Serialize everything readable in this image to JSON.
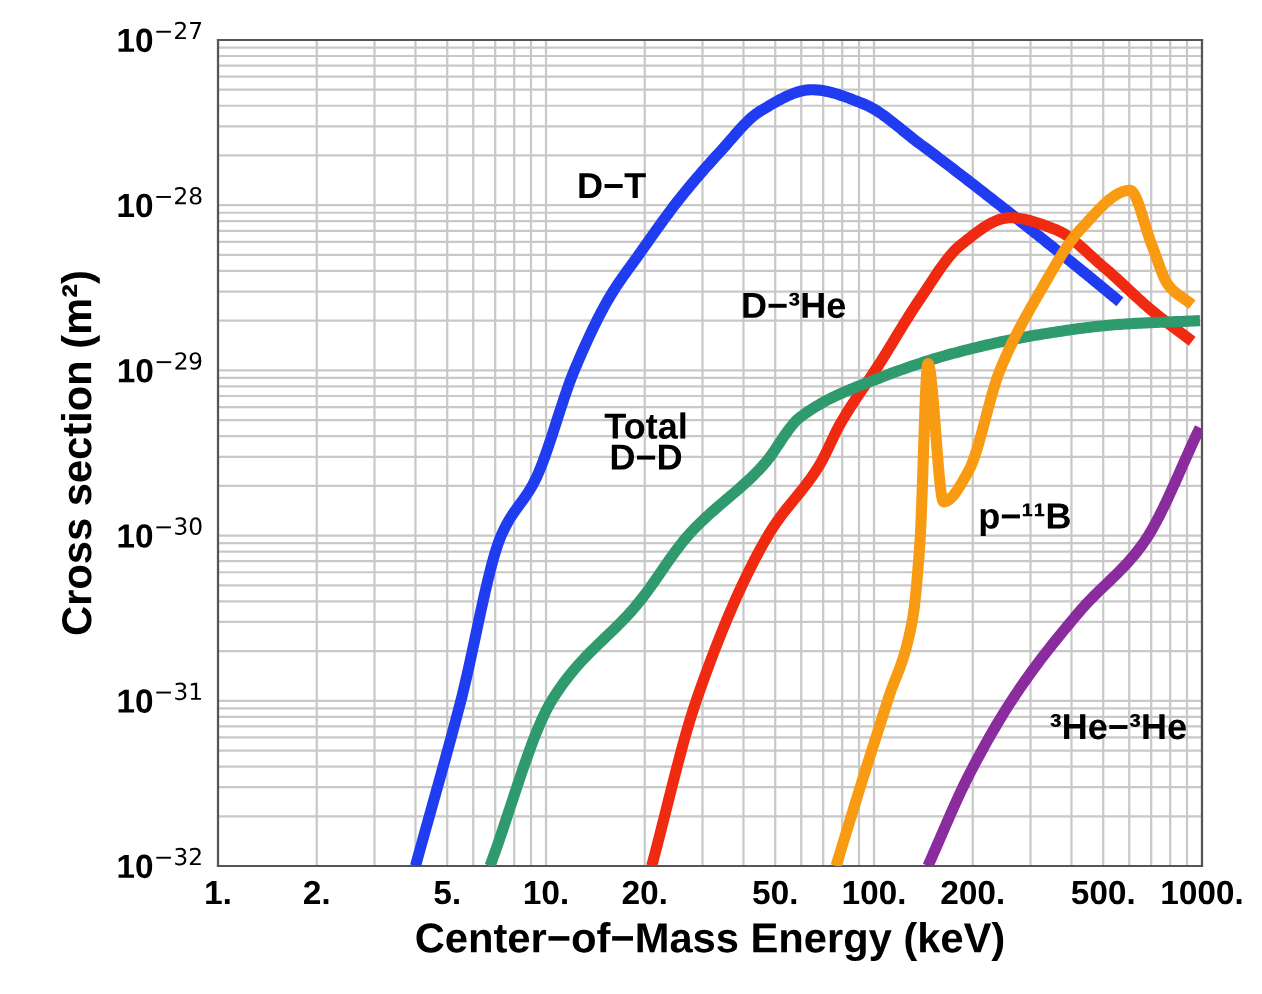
{
  "chart_data": {
    "type": "line",
    "xlabel": "Center−of−Mass Energy (keV)",
    "ylabel": "Cross section (m²)",
    "log": "xy",
    "grid": true,
    "legend": false,
    "marker": "none",
    "line_style": "solid",
    "xlim": [
      1,
      1000
    ],
    "ylim": [
      1e-32,
      1e-27
    ],
    "xticks": [
      {
        "value": 1,
        "label": "1."
      },
      {
        "value": 2,
        "label": "2."
      },
      {
        "value": 3,
        "label": null
      },
      {
        "value": 4,
        "label": null
      },
      {
        "value": 5,
        "label": "5."
      },
      {
        "value": 6,
        "label": null
      },
      {
        "value": 7,
        "label": null
      },
      {
        "value": 8,
        "label": null
      },
      {
        "value": 9,
        "label": null
      },
      {
        "value": 10,
        "label": "10."
      },
      {
        "value": 20,
        "label": "20."
      },
      {
        "value": 30,
        "label": null
      },
      {
        "value": 40,
        "label": null
      },
      {
        "value": 50,
        "label": "50."
      },
      {
        "value": 60,
        "label": null
      },
      {
        "value": 70,
        "label": null
      },
      {
        "value": 80,
        "label": null
      },
      {
        "value": 90,
        "label": null
      },
      {
        "value": 100,
        "label": "100."
      },
      {
        "value": 200,
        "label": "200."
      },
      {
        "value": 300,
        "label": null
      },
      {
        "value": 400,
        "label": null
      },
      {
        "value": 500,
        "label": "500."
      },
      {
        "value": 600,
        "label": null
      },
      {
        "value": 700,
        "label": null
      },
      {
        "value": 800,
        "label": null
      },
      {
        "value": 900,
        "label": null
      },
      {
        "value": 1000,
        "label": "1000."
      }
    ],
    "yticks": [
      {
        "value": 1e-32,
        "label": "10$^{−32}$"
      },
      {
        "value": 2e-32,
        "label": null
      },
      {
        "value": 3e-32,
        "label": null
      },
      {
        "value": 4e-32,
        "label": null
      },
      {
        "value": 5e-32,
        "label": null
      },
      {
        "value": 6e-32,
        "label": null
      },
      {
        "value": 7e-32,
        "label": null
      },
      {
        "value": 8e-32,
        "label": null
      },
      {
        "value": 9e-32,
        "label": null
      },
      {
        "value": 1e-31,
        "label": "10$^{−31}$"
      },
      {
        "value": 2e-31,
        "label": null
      },
      {
        "value": 3e-31,
        "label": null
      },
      {
        "value": 4e-31,
        "label": null
      },
      {
        "value": 5e-31,
        "label": null
      },
      {
        "value": 6e-31,
        "label": null
      },
      {
        "value": 7e-31,
        "label": null
      },
      {
        "value": 8e-31,
        "label": null
      },
      {
        "value": 9e-31,
        "label": null
      },
      {
        "value": 1e-30,
        "label": "10$^{−30}$"
      },
      {
        "value": 2e-30,
        "label": null
      },
      {
        "value": 3e-30,
        "label": null
      },
      {
        "value": 4e-30,
        "label": null
      },
      {
        "value": 5e-30,
        "label": null
      },
      {
        "value": 6e-30,
        "label": null
      },
      {
        "value": 7e-30,
        "label": null
      },
      {
        "value": 8e-30,
        "label": null
      },
      {
        "value": 9e-30,
        "label": null
      },
      {
        "value": 1e-29,
        "label": "10$^{−29}$"
      },
      {
        "value": 2e-29,
        "label": null
      },
      {
        "value": 3e-29,
        "label": null
      },
      {
        "value": 4e-29,
        "label": null
      },
      {
        "value": 5e-29,
        "label": null
      },
      {
        "value": 6e-29,
        "label": null
      },
      {
        "value": 7e-29,
        "label": null
      },
      {
        "value": 8e-29,
        "label": null
      },
      {
        "value": 9e-29,
        "label": null
      },
      {
        "value": 1e-28,
        "label": "10$^{−28}$"
      },
      {
        "value": 2e-28,
        "label": null
      },
      {
        "value": 3e-28,
        "label": null
      },
      {
        "value": 4e-28,
        "label": null
      },
      {
        "value": 5e-28,
        "label": null
      },
      {
        "value": 6e-28,
        "label": null
      },
      {
        "value": 7e-28,
        "label": null
      },
      {
        "value": 8e-28,
        "label": null
      },
      {
        "value": 9e-28,
        "label": null
      },
      {
        "value": 1e-27,
        "label": "10$^{−27}$"
      }
    ],
    "series": [
      {
        "name": "D−T",
        "color": "#1f3cf0",
        "x": [
          4.0,
          5.5,
          7.3,
          9.3,
          12.2,
          15.5,
          19.3,
          25.6,
          33.9,
          44.9,
          64.7,
          93,
          138,
          242,
          425,
          562
        ],
        "values": [
          1e-32,
          1e-31,
          1e-30,
          2.2e-30,
          1e-29,
          2.7e-29,
          5.1e-29,
          1.1e-28,
          2.1e-28,
          3.7e-28,
          5e-28,
          4.1e-28,
          2.35e-28,
          1e-28,
          4.1e-29,
          2.6e-29
        ]
      },
      {
        "name": "D−³He",
        "color": "#f02a10",
        "x": [
          21,
          28.7,
          47.5,
          68.4,
          78.7,
          104,
          138,
          183,
          260,
          359,
          503,
          704,
          933
        ],
        "values": [
          1e-32,
          1e-31,
          1e-30,
          2.7e-30,
          4.7e-30,
          1.1e-29,
          2.7e-29,
          5.7e-29,
          8.4e-29,
          7.1e-29,
          4.2e-29,
          2.3e-29,
          1.5e-29
        ]
      },
      {
        "name": "Total\nD−D",
        "color": "#2e9a6e",
        "x": [
          6.75,
          10.4,
          19.3,
          27.1,
          46.2,
          59.5,
          104,
          183,
          321,
          562,
          986
        ],
        "values": [
          1e-32,
          1e-31,
          4e-31,
          1e-30,
          2.7e-30,
          5.2e-30,
          9e-30,
          1.3e-29,
          1.65e-29,
          1.9e-29,
          2e-29
        ]
      },
      {
        "name": "p−¹¹B",
        "color": "#f99b12",
        "x": [
          76.6,
          93,
          110,
          131,
          138,
          146,
          163,
          194,
          242,
          321,
          425,
          603,
          704,
          788,
          933
        ],
        "values": [
          1e-32,
          3.5e-32,
          1e-31,
          3.1e-31,
          9e-31,
          1.1e-29,
          1.6e-30,
          2.45e-30,
          1e-29,
          3e-29,
          7.1e-29,
          1.23e-28,
          5.7e-29,
          3.3e-29,
          2.5e-29
        ]
      },
      {
        "name": "³He−³He",
        "color": "#8a2b9e",
        "x": [
          146,
          194,
          271,
          425,
          665,
          986
        ],
        "values": [
          1e-32,
          3.5e-32,
          1.1e-31,
          3.5e-31,
          9.1e-31,
          4.5e-30
        ]
      }
    ]
  }
}
